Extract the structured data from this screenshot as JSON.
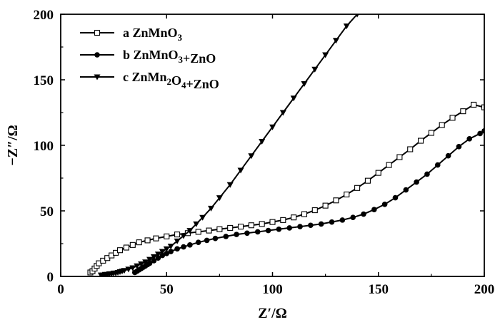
{
  "chart_data": {
    "type": "line",
    "xlabel": "Z′/Ω",
    "ylabel": "−Z″/Ω",
    "xlim": [
      0,
      200
    ],
    "ylim": [
      0,
      200
    ],
    "x_ticks": [
      0,
      50,
      100,
      150,
      200
    ],
    "y_ticks": [
      0,
      50,
      100,
      150,
      200
    ],
    "grid": false,
    "legend_position": "top-left",
    "series": [
      {
        "name": "a ZnMnO3",
        "marker": "open-square",
        "color": "#000000",
        "x": [
          14,
          15,
          16,
          17,
          18,
          20,
          22,
          24,
          26,
          28,
          31,
          34,
          37,
          41,
          45,
          50,
          55,
          60,
          65,
          70,
          75,
          80,
          85,
          90,
          95,
          100,
          105,
          110,
          115,
          120,
          125,
          130,
          135,
          140,
          145,
          150,
          155,
          160,
          165,
          170,
          175,
          180,
          185,
          190,
          195,
          200
        ],
        "y": [
          3,
          4,
          6,
          8,
          10,
          12,
          14,
          16,
          18,
          20,
          22,
          24,
          26,
          27.5,
          29,
          30.5,
          32,
          33,
          34,
          35,
          36,
          37,
          38,
          39,
          40,
          41.5,
          43,
          45,
          47.5,
          50.5,
          54,
          58,
          62.5,
          67.5,
          73,
          79,
          85,
          91,
          97,
          103.5,
          109.5,
          115.5,
          121,
          126,
          131,
          129
        ]
      },
      {
        "name": "b ZnMnO3+ZnO",
        "marker": "filled-circle",
        "color": "#000000",
        "x": [
          35,
          36,
          37,
          38,
          39,
          40,
          41,
          42,
          44,
          46,
          48,
          50,
          52,
          55,
          58,
          61,
          65,
          69,
          73,
          78,
          83,
          88,
          93,
          98,
          103,
          108,
          113,
          118,
          123,
          128,
          133,
          138,
          143,
          148,
          153,
          158,
          163,
          168,
          173,
          178,
          183,
          188,
          193,
          198,
          200
        ],
        "y": [
          3,
          4,
          5,
          6,
          7,
          8,
          9,
          10,
          12,
          14,
          16,
          17.5,
          19,
          21,
          22.5,
          24,
          26,
          27.5,
          29,
          30.5,
          32,
          33,
          34,
          35,
          36,
          37,
          38,
          39,
          40,
          41.5,
          43,
          45,
          47.5,
          51,
          55,
          60,
          66,
          72,
          78,
          85,
          92,
          99,
          105,
          109,
          111
        ]
      },
      {
        "name": "c ZnMn2O4+ZnO",
        "marker": "filled-down-triangle",
        "color": "#000000",
        "x": [
          19,
          20,
          21,
          22,
          23,
          24,
          25,
          26,
          27,
          28,
          29,
          30,
          32,
          34,
          36,
          38,
          40,
          42,
          44,
          46,
          48,
          50,
          52,
          55,
          58,
          61,
          64,
          67,
          71,
          75,
          80,
          85,
          90,
          95,
          100,
          105,
          110,
          115,
          120,
          125,
          130,
          135,
          140
        ],
        "y": [
          1,
          1,
          1.5,
          1.5,
          2,
          2,
          2.5,
          2.5,
          3,
          3.5,
          4,
          4.5,
          5.5,
          6.5,
          8,
          9.5,
          11,
          13,
          15,
          17,
          19,
          21,
          23,
          27,
          31,
          35,
          40,
          45,
          52,
          60,
          70,
          81,
          92,
          103,
          114,
          125,
          136,
          147,
          158,
          169,
          180,
          191,
          200
        ]
      }
    ]
  }
}
